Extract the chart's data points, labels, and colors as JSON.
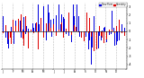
{
  "title": "",
  "background_color": "#ffffff",
  "bar_color_blue": "#0000dd",
  "bar_color_red": "#dd0000",
  "legend_label_blue": "Dew Point",
  "legend_label_red": "Humidity",
  "ylim": [
    -4.5,
    3.5
  ],
  "n_points": 365,
  "seed": 42,
  "yticks": [
    3,
    2,
    1,
    0,
    -1,
    -2,
    -3,
    -4
  ],
  "ytick_labels": [
    "3",
    "2",
    "1",
    "0",
    "-1",
    "-2",
    "-3",
    "-4"
  ],
  "grid_color": "#bbbbbb",
  "month_positions": [
    0,
    31,
    59,
    90,
    120,
    151,
    181,
    212,
    243,
    273,
    304,
    334,
    365
  ],
  "month_labels": [
    "J",
    "F",
    "M",
    "A",
    "M",
    "J",
    "J",
    "A",
    "S",
    "O",
    "N",
    "D",
    ""
  ]
}
